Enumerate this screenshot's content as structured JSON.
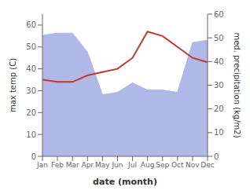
{
  "chart_data": {
    "type": "line",
    "xlabel": "date (month)",
    "ylabel": "max temp (C)",
    "y2label": "med. precipitation (kg/m2)",
    "categories": [
      "Jan",
      "Feb",
      "Mar",
      "Apr",
      "May",
      "Jun",
      "Jul",
      "Aug",
      "Sep",
      "Oct",
      "Nov",
      "Dec"
    ],
    "series": [
      {
        "type": "area",
        "axis": "y2",
        "color": "#b0b8e8",
        "values": [
          51,
          52,
          52,
          44,
          26,
          27,
          31,
          28,
          28,
          27,
          48,
          49
        ]
      },
      {
        "type": "line",
        "color": "#c0392b",
        "values": [
          35,
          34,
          34,
          37,
          38.5,
          40,
          45,
          57,
          55,
          50,
          45,
          43
        ]
      }
    ],
    "ylim": [
      0,
      65
    ],
    "yticks": [
      0,
      10,
      20,
      30,
      40,
      50,
      60
    ],
    "y2lim": [
      0,
      60
    ],
    "y2ticks": [
      0,
      10,
      20,
      30,
      40,
      50,
      60
    ],
    "grid": false
  }
}
